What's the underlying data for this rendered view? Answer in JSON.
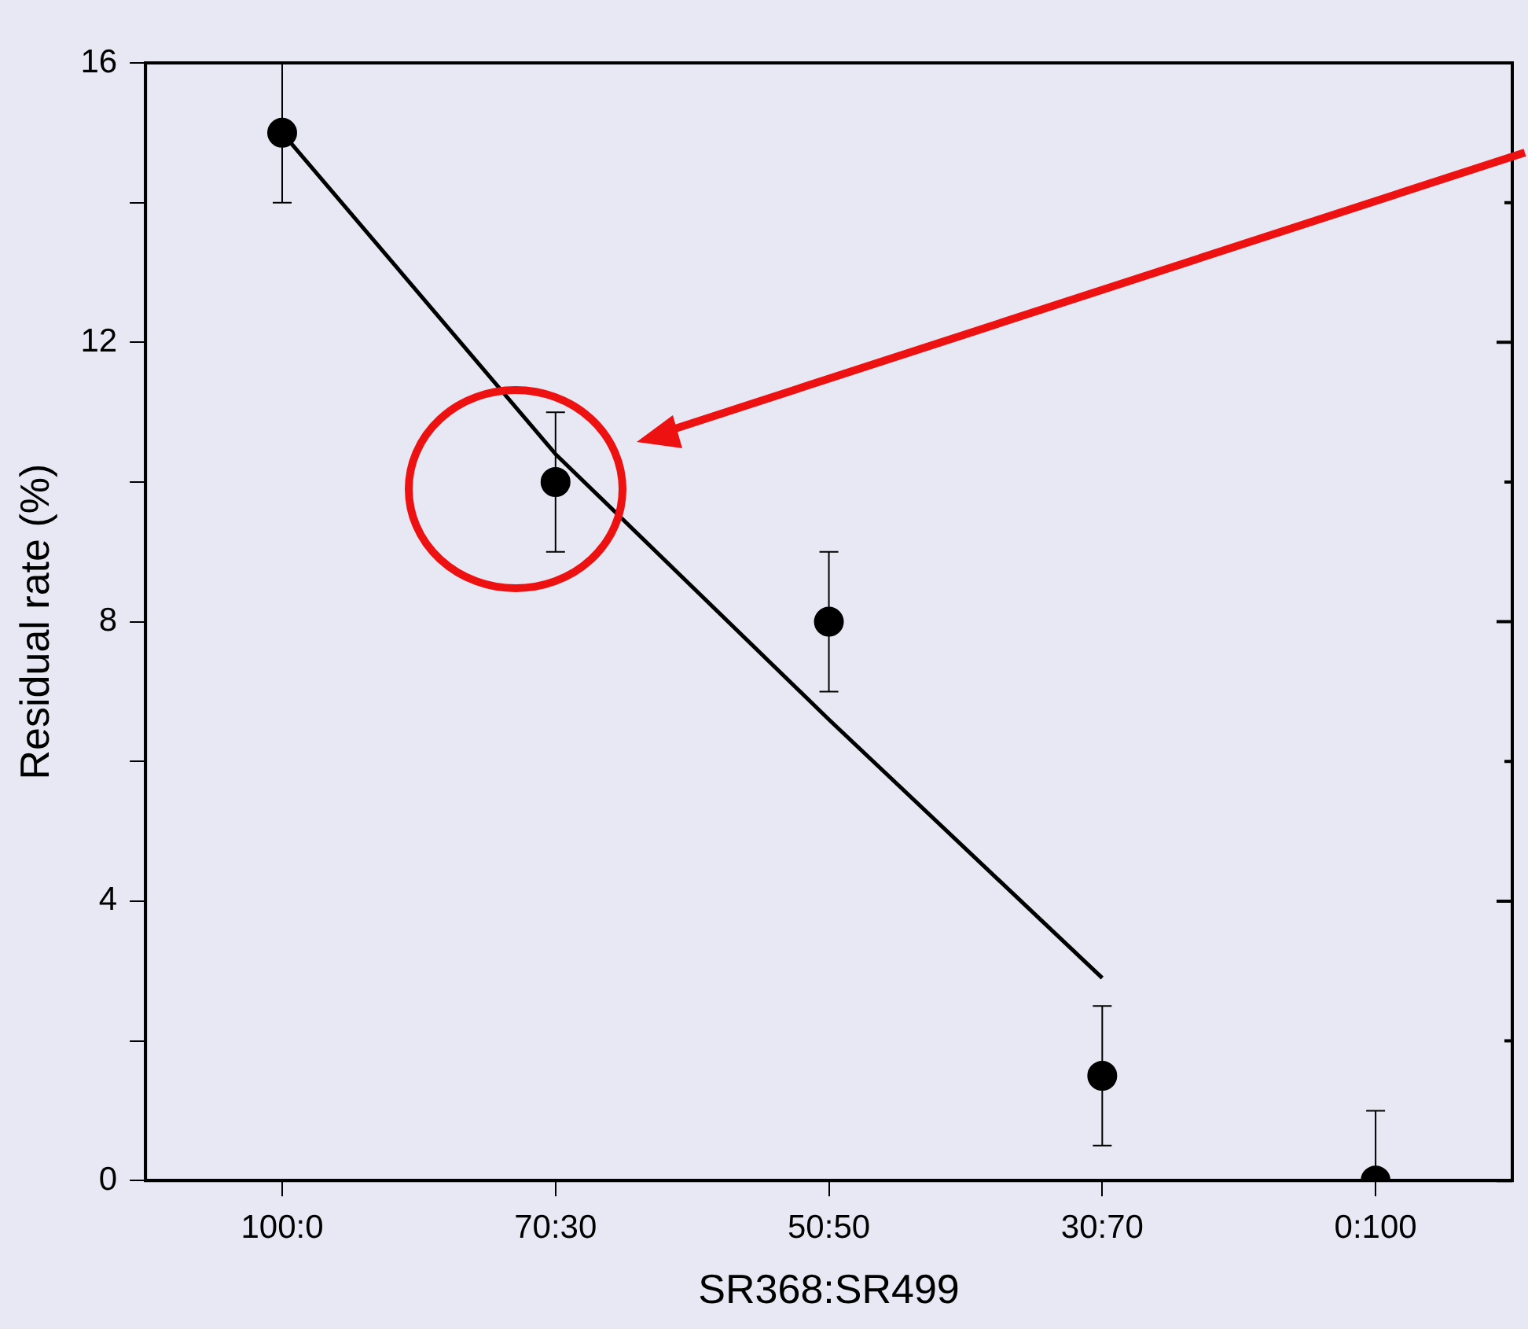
{
  "chart_data": {
    "type": "scatter",
    "xlabel": "SR368:SR499",
    "ylabel": "Residual rate (%)",
    "categories": [
      "100:0",
      "70:30",
      "50:50",
      "30:70",
      "0:100"
    ],
    "series": [
      {
        "color": "#000000",
        "values": [
          15,
          10,
          8,
          1.5,
          0
        ],
        "errors": [
          1,
          1,
          1,
          1,
          [
            0,
            1
          ]
        ],
        "marker": "circle"
      },
      {
        "type": "line",
        "color": "#000000",
        "values": [
          15,
          10.4,
          6.6,
          2.9,
          null
        ],
        "marker": "none",
        "line_style": "solid"
      }
    ],
    "ylim": [
      0,
      16
    ],
    "yticks": [
      0,
      {
        "value": 2,
        "label": null
      },
      4,
      {
        "value": 6,
        "label": null
      },
      8,
      {
        "value": 10,
        "label": null
      },
      12,
      {
        "value": 14,
        "label": null
      },
      16
    ],
    "grid": false,
    "legend": false
  }
}
